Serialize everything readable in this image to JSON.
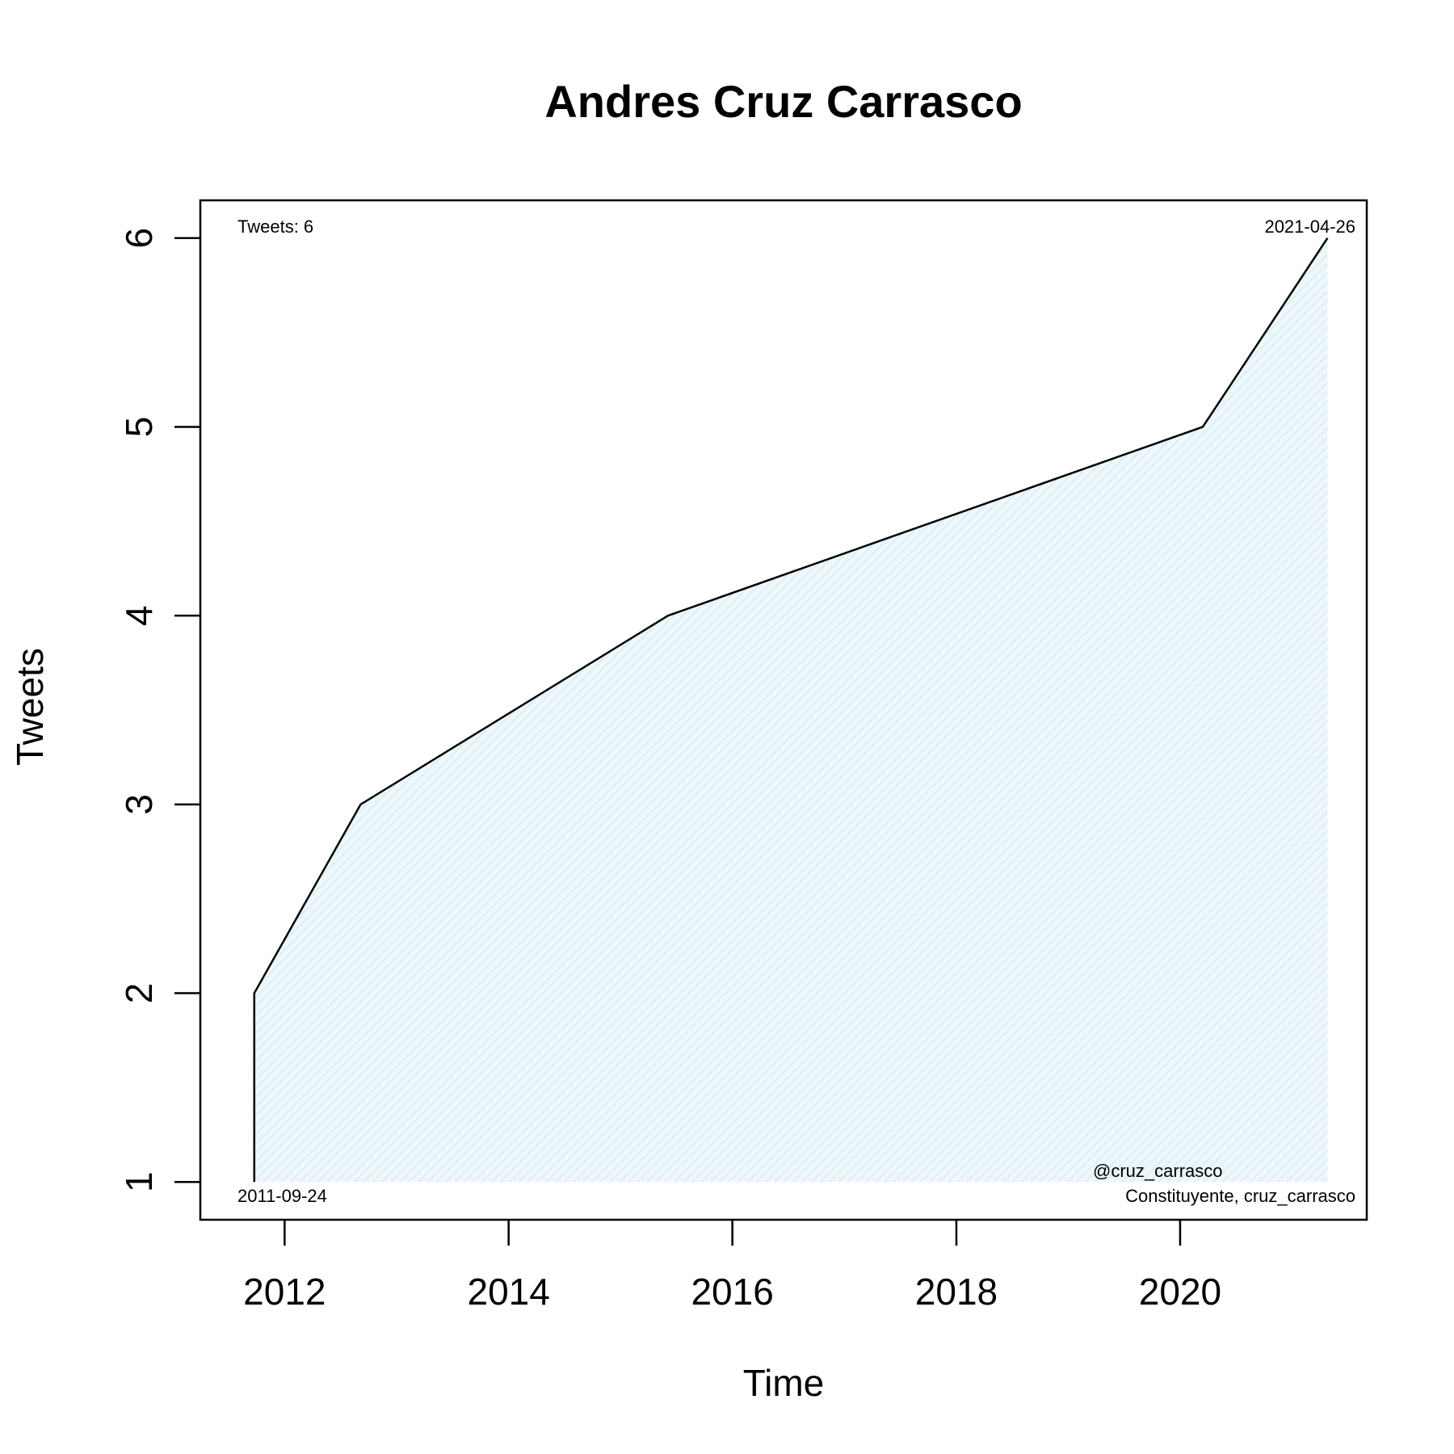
{
  "chart_data": {
    "type": "area",
    "title": "Andres Cruz Carrasco",
    "xlabel": "Time",
    "ylabel": "Tweets",
    "x": [
      "2011-09-24",
      "2011-09-24",
      "2012-09-05",
      "2015-06-05",
      "2020-03-15",
      "2021-04-26"
    ],
    "y": [
      1,
      2,
      3,
      4,
      5,
      6
    ],
    "xlim": [
      "2011-04-01",
      "2021-09-01"
    ],
    "ylim": [
      0.8,
      6.2
    ],
    "x_ticks": [
      {
        "value": "2012-01-01",
        "label": "2012"
      },
      {
        "value": "2014-01-01",
        "label": "2014"
      },
      {
        "value": "2016-01-01",
        "label": "2016"
      },
      {
        "value": "2018-01-01",
        "label": "2018"
      },
      {
        "value": "2020-01-01",
        "label": "2020"
      }
    ],
    "y_ticks": [
      1,
      2,
      3,
      4,
      5,
      6
    ],
    "fill_color": "#e3f1f5",
    "line_color": "#000000",
    "grid": false,
    "annotations": {
      "top_left": "Tweets: 6",
      "top_right": "2021-04-26",
      "bottom_left": "2011-09-24",
      "bottom_right_line1": "@cruz_carrasco",
      "bottom_right_line2": "Constituyente, cruz_carrasco"
    }
  }
}
